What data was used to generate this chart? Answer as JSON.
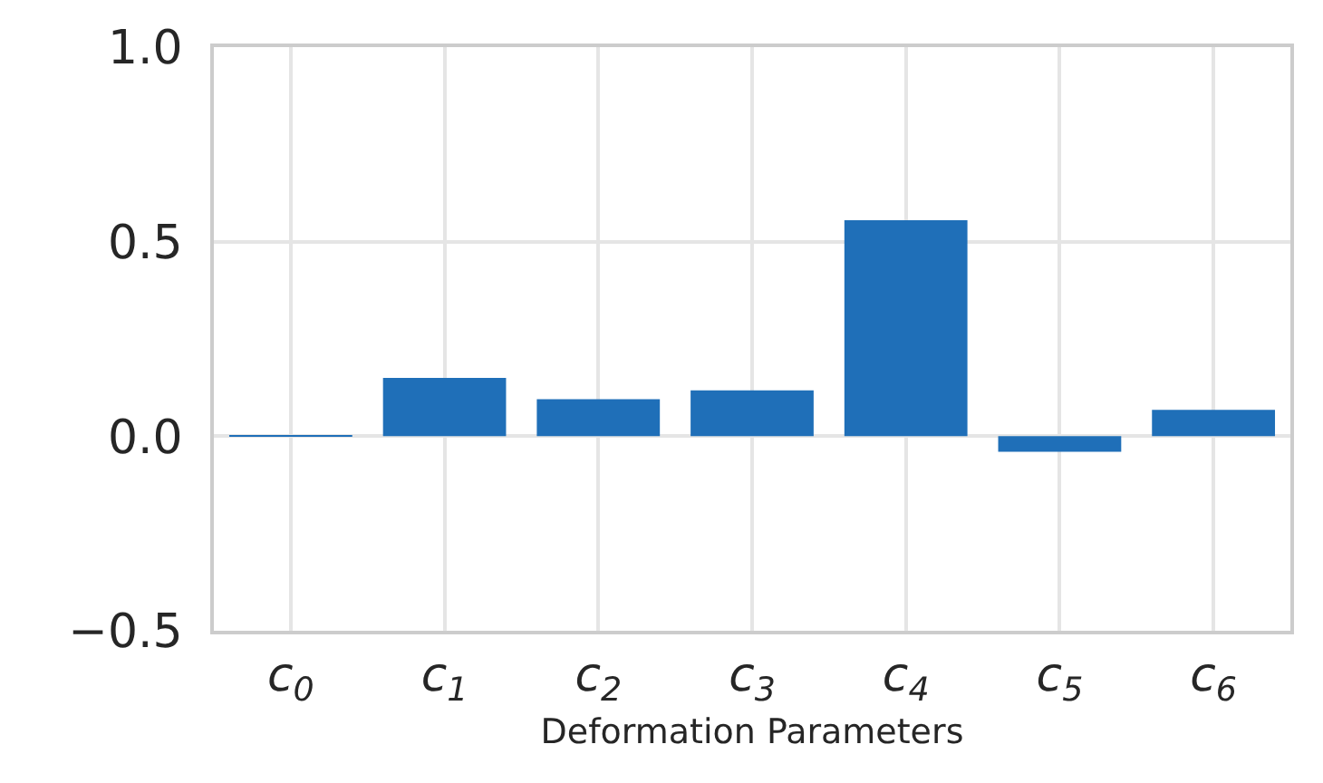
{
  "chart_data": {
    "type": "bar",
    "xlabel": "Deformation Parameters",
    "categories": [
      "c$_{0}$",
      "c$_{1}$",
      "c$_{2}$",
      "c$_{3}$",
      "c$_{4}$",
      "c$_{5}$",
      "c$_{6}$"
    ],
    "values": [
      0.003,
      0.15,
      0.095,
      0.118,
      0.555,
      -0.04,
      0.068
    ],
    "color": "#1f6fb8",
    "ylim": [
      -0.5,
      1.0
    ],
    "yticks": [
      {
        "value": -0.5,
        "label": "−0.5"
      },
      {
        "value": 0,
        "label": "0.0"
      },
      {
        "value": 0.5,
        "label": "0.5"
      },
      {
        "value": 1,
        "label": "1.0"
      }
    ],
    "grid": true
  }
}
